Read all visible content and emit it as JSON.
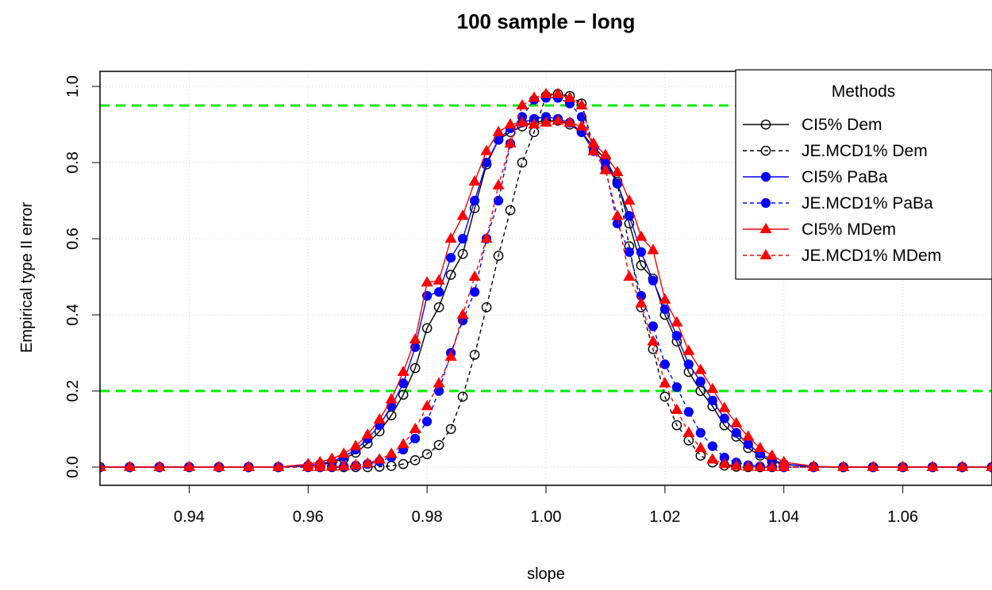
{
  "chart_data": {
    "type": "line",
    "title": "100 sample − long",
    "xlabel": "slope",
    "ylabel": "Empirical type II error",
    "xlim": [
      0.925,
      1.075
    ],
    "ylim": [
      0.0,
      1.0
    ],
    "x_ticks": [
      0.94,
      0.96,
      0.98,
      1.0,
      1.02,
      1.04,
      1.06
    ],
    "x_tick_labels": [
      "0.94",
      "0.96",
      "0.98",
      "1.00",
      "1.02",
      "1.04",
      "1.06"
    ],
    "y_ticks": [
      0.0,
      0.2,
      0.4,
      0.6,
      0.8,
      1.0
    ],
    "y_tick_labels": [
      "0.0",
      "0.2",
      "0.4",
      "0.6",
      "0.8",
      "1.0"
    ],
    "grid": true,
    "reference_lines": [
      0.95,
      0.2
    ],
    "legend": {
      "title": "Methods",
      "position": "top-right"
    },
    "series": [
      {
        "name": "CI5% Dem",
        "color": "#000000",
        "linestyle": "solid",
        "marker": "open-circle",
        "x": [
          0.925,
          0.93,
          0.935,
          0.94,
          0.945,
          0.95,
          0.955,
          0.96,
          0.962,
          0.964,
          0.966,
          0.968,
          0.97,
          0.972,
          0.974,
          0.976,
          0.978,
          0.98,
          0.982,
          0.984,
          0.986,
          0.988,
          0.99,
          0.992,
          0.994,
          0.996,
          0.998,
          1.0,
          1.002,
          1.004,
          1.006,
          1.008,
          1.01,
          1.012,
          1.014,
          1.016,
          1.018,
          1.02,
          1.022,
          1.024,
          1.026,
          1.028,
          1.03,
          1.032,
          1.034,
          1.036,
          1.038,
          1.04,
          1.045,
          1.05,
          1.055,
          1.06,
          1.065,
          1.07,
          1.075
        ],
        "y": [
          0,
          0,
          0,
          0,
          0,
          0,
          0,
          0.003,
          0.006,
          0.012,
          0.022,
          0.038,
          0.062,
          0.094,
          0.136,
          0.19,
          0.26,
          0.365,
          0.42,
          0.505,
          0.56,
          0.68,
          0.795,
          0.86,
          0.88,
          0.895,
          0.905,
          0.91,
          0.91,
          0.9,
          0.88,
          0.84,
          0.81,
          0.75,
          0.64,
          0.53,
          0.495,
          0.4,
          0.33,
          0.25,
          0.2,
          0.16,
          0.11,
          0.08,
          0.05,
          0.03,
          0.015,
          0.007,
          0.001,
          0,
          0,
          0,
          0,
          0,
          0
        ]
      },
      {
        "name": "JE.MCD1% Dem",
        "color": "#000000",
        "linestyle": "dashed",
        "marker": "open-circle",
        "x": [
          0.925,
          0.93,
          0.935,
          0.94,
          0.945,
          0.95,
          0.955,
          0.96,
          0.962,
          0.964,
          0.966,
          0.968,
          0.97,
          0.972,
          0.974,
          0.976,
          0.978,
          0.98,
          0.982,
          0.984,
          0.986,
          0.988,
          0.99,
          0.992,
          0.994,
          0.996,
          0.998,
          1.0,
          1.002,
          1.004,
          1.006,
          1.008,
          1.01,
          1.012,
          1.014,
          1.016,
          1.018,
          1.02,
          1.022,
          1.024,
          1.026,
          1.028,
          1.03,
          1.032,
          1.034,
          1.036,
          1.038,
          1.04,
          1.045,
          1.05,
          1.055,
          1.06,
          1.065,
          1.07,
          1.075
        ],
        "y": [
          0,
          0,
          0,
          0,
          0,
          0,
          0,
          0,
          0,
          0,
          0,
          0,
          0,
          0.001,
          0.003,
          0.008,
          0.018,
          0.034,
          0.058,
          0.1,
          0.185,
          0.295,
          0.42,
          0.555,
          0.675,
          0.8,
          0.88,
          0.975,
          0.98,
          0.975,
          0.955,
          0.84,
          0.81,
          0.745,
          0.58,
          0.42,
          0.31,
          0.185,
          0.11,
          0.07,
          0.03,
          0.012,
          0.004,
          0.001,
          0,
          0,
          0,
          0,
          0,
          0,
          0,
          0,
          0,
          0,
          0
        ]
      },
      {
        "name": "CI5% PaBa",
        "color": "#0000ff",
        "linestyle": "solid",
        "marker": "filled-circle",
        "x": [
          0.925,
          0.93,
          0.935,
          0.94,
          0.945,
          0.95,
          0.955,
          0.96,
          0.962,
          0.964,
          0.966,
          0.968,
          0.97,
          0.972,
          0.974,
          0.976,
          0.978,
          0.98,
          0.982,
          0.984,
          0.986,
          0.988,
          0.99,
          0.992,
          0.994,
          0.996,
          0.998,
          1.0,
          1.002,
          1.004,
          1.006,
          1.008,
          1.01,
          1.012,
          1.014,
          1.016,
          1.018,
          1.02,
          1.022,
          1.024,
          1.026,
          1.028,
          1.03,
          1.032,
          1.034,
          1.036,
          1.038,
          1.04,
          1.045,
          1.05,
          1.055,
          1.06,
          1.065,
          1.07,
          1.075
        ],
        "y": [
          0,
          0,
          0,
          0,
          0,
          0,
          0,
          0.004,
          0.008,
          0.015,
          0.027,
          0.046,
          0.074,
          0.11,
          0.16,
          0.22,
          0.315,
          0.45,
          0.46,
          0.55,
          0.6,
          0.7,
          0.8,
          0.86,
          0.89,
          0.905,
          0.915,
          0.92,
          0.915,
          0.905,
          0.88,
          0.83,
          0.8,
          0.745,
          0.66,
          0.565,
          0.49,
          0.415,
          0.345,
          0.27,
          0.225,
          0.175,
          0.128,
          0.09,
          0.06,
          0.035,
          0.02,
          0.008,
          0.001,
          0,
          0,
          0,
          0,
          0,
          0
        ]
      },
      {
        "name": "JE.MCD1% PaBa",
        "color": "#0000ff",
        "linestyle": "dashed",
        "marker": "filled-circle",
        "x": [
          0.925,
          0.93,
          0.935,
          0.94,
          0.945,
          0.95,
          0.955,
          0.96,
          0.962,
          0.964,
          0.966,
          0.968,
          0.97,
          0.972,
          0.974,
          0.976,
          0.978,
          0.98,
          0.982,
          0.984,
          0.986,
          0.988,
          0.99,
          0.992,
          0.994,
          0.996,
          0.998,
          1.0,
          1.002,
          1.004,
          1.006,
          1.008,
          1.01,
          1.012,
          1.014,
          1.016,
          1.018,
          1.02,
          1.022,
          1.024,
          1.026,
          1.028,
          1.03,
          1.032,
          1.034,
          1.036,
          1.038,
          1.04,
          1.045,
          1.05,
          1.055,
          1.06,
          1.065,
          1.07,
          1.075
        ],
        "y": [
          0,
          0,
          0,
          0,
          0,
          0,
          0,
          0,
          0,
          0.001,
          0.002,
          0.004,
          0.008,
          0.015,
          0.026,
          0.046,
          0.075,
          0.12,
          0.2,
          0.3,
          0.385,
          0.46,
          0.6,
          0.7,
          0.85,
          0.92,
          0.965,
          0.97,
          0.97,
          0.955,
          0.92,
          0.84,
          0.785,
          0.64,
          0.565,
          0.45,
          0.37,
          0.27,
          0.21,
          0.145,
          0.09,
          0.055,
          0.025,
          0.012,
          0.005,
          0.002,
          0.001,
          0,
          0,
          0,
          0,
          0,
          0,
          0,
          0
        ]
      },
      {
        "name": "CI5% MDem",
        "color": "#ff0000",
        "linestyle": "solid",
        "marker": "filled-triangle",
        "x": [
          0.925,
          0.93,
          0.935,
          0.94,
          0.945,
          0.95,
          0.955,
          0.96,
          0.962,
          0.964,
          0.966,
          0.968,
          0.97,
          0.972,
          0.974,
          0.976,
          0.978,
          0.98,
          0.982,
          0.984,
          0.986,
          0.988,
          0.99,
          0.992,
          0.994,
          0.996,
          0.998,
          1.0,
          1.002,
          1.004,
          1.006,
          1.008,
          1.01,
          1.012,
          1.014,
          1.016,
          1.018,
          1.02,
          1.022,
          1.024,
          1.026,
          1.028,
          1.03,
          1.032,
          1.034,
          1.036,
          1.038,
          1.04,
          1.045,
          1.05,
          1.055,
          1.06,
          1.065,
          1.07,
          1.075
        ],
        "y": [
          0,
          0,
          0,
          0,
          0,
          0,
          0,
          0.008,
          0.013,
          0.022,
          0.035,
          0.055,
          0.085,
          0.125,
          0.178,
          0.25,
          0.335,
          0.485,
          0.49,
          0.6,
          0.66,
          0.75,
          0.83,
          0.88,
          0.9,
          0.905,
          0.9,
          0.905,
          0.91,
          0.905,
          0.895,
          0.85,
          0.82,
          0.775,
          0.7,
          0.605,
          0.57,
          0.44,
          0.38,
          0.305,
          0.255,
          0.205,
          0.155,
          0.115,
          0.08,
          0.05,
          0.03,
          0.013,
          0.002,
          0,
          0,
          0,
          0,
          0,
          0
        ]
      },
      {
        "name": "JE.MCD1% MDem",
        "color": "#ff0000",
        "linestyle": "dashed",
        "marker": "filled-triangle",
        "x": [
          0.925,
          0.93,
          0.935,
          0.94,
          0.945,
          0.95,
          0.955,
          0.96,
          0.962,
          0.964,
          0.966,
          0.968,
          0.97,
          0.972,
          0.974,
          0.976,
          0.978,
          0.98,
          0.982,
          0.984,
          0.986,
          0.988,
          0.99,
          0.992,
          0.994,
          0.996,
          0.998,
          1.0,
          1.002,
          1.004,
          1.006,
          1.008,
          1.01,
          1.012,
          1.014,
          1.016,
          1.018,
          1.02,
          1.022,
          1.024,
          1.026,
          1.028,
          1.03,
          1.032,
          1.034,
          1.036,
          1.038,
          1.04,
          1.045,
          1.05,
          1.055,
          1.06,
          1.065,
          1.07,
          1.075
        ],
        "y": [
          0,
          0,
          0,
          0,
          0,
          0,
          0,
          0,
          0,
          0.001,
          0.002,
          0.005,
          0.01,
          0.02,
          0.035,
          0.06,
          0.1,
          0.16,
          0.22,
          0.29,
          0.4,
          0.5,
          0.6,
          0.74,
          0.85,
          0.95,
          0.97,
          0.98,
          0.98,
          0.97,
          0.95,
          0.83,
          0.78,
          0.66,
          0.5,
          0.43,
          0.33,
          0.22,
          0.15,
          0.09,
          0.05,
          0.02,
          0.008,
          0.003,
          0.001,
          0,
          0,
          0,
          0,
          0,
          0,
          0,
          0,
          0,
          0
        ]
      }
    ]
  }
}
